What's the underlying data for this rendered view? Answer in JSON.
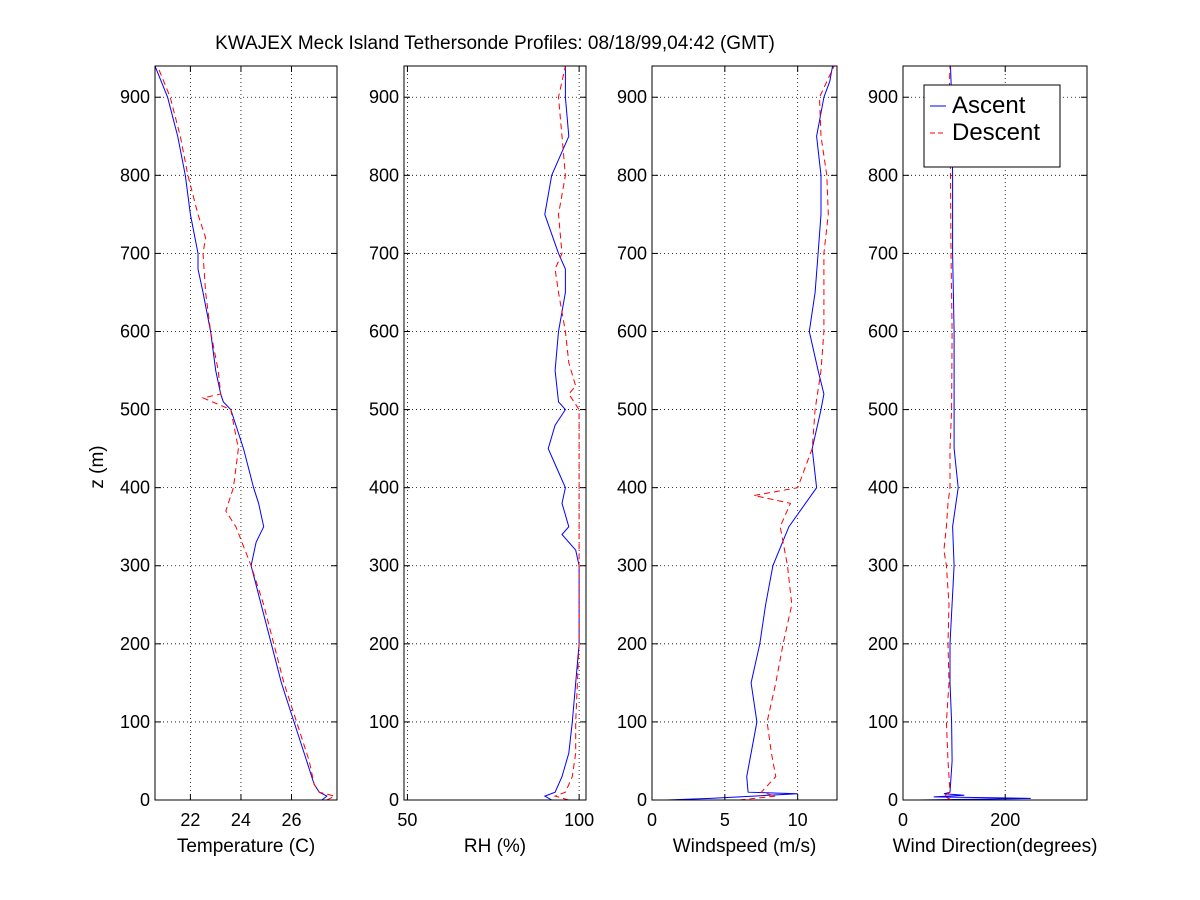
{
  "chart_data": {
    "type": "line",
    "title": "KWAJEX Meck Island Tethersonde Profiles: 08/18/99,04:42 (GMT)",
    "ylabel": "z (m)",
    "ylim": [
      0,
      940
    ],
    "yticks": [
      0,
      100,
      200,
      300,
      400,
      500,
      600,
      700,
      800,
      900
    ],
    "colors": {
      "ascent": "#0000ff",
      "descent": "#ff0000"
    },
    "legend": {
      "position": "top-right",
      "panel": 3,
      "entries": [
        "Ascent",
        "Descent"
      ]
    },
    "panels": [
      {
        "xlabel": "Temperature (C)",
        "xlim": [
          20.6,
          27.8
        ],
        "xticks": [
          22,
          24,
          26
        ],
        "series": [
          {
            "name": "Ascent",
            "z": [
              0,
              5,
              10,
              20,
              50,
              100,
              150,
              200,
              250,
              300,
              330,
              350,
              380,
              400,
              450,
              500,
              510,
              520,
              550,
              600,
              650,
              680,
              700,
              750,
              800,
              850,
              900,
              940
            ],
            "x": [
              27.2,
              27.4,
              27.1,
              26.9,
              26.6,
              26.1,
              25.6,
              25.2,
              24.8,
              24.4,
              24.6,
              24.9,
              24.7,
              24.5,
              24.1,
              23.6,
              23.3,
              23.2,
              23.0,
              22.8,
              22.5,
              22.3,
              22.3,
              22.0,
              21.8,
              21.5,
              21.1,
              20.6
            ]
          },
          {
            "name": "Descent",
            "z": [
              0,
              5,
              10,
              20,
              50,
              100,
              150,
              200,
              250,
              300,
              350,
              370,
              400,
              450,
              500,
              515,
              520,
              550,
              600,
              650,
              700,
              720,
              750,
              800,
              850,
              900,
              940
            ],
            "x": [
              27.4,
              27.7,
              27.1,
              26.9,
              26.7,
              26.2,
              25.7,
              25.3,
              24.9,
              24.4,
              23.8,
              23.4,
              23.7,
              23.9,
              23.6,
              22.5,
              23.2,
              23.1,
              22.8,
              22.6,
              22.5,
              22.6,
              22.3,
              21.9,
              21.6,
              21.2,
              20.7
            ]
          }
        ]
      },
      {
        "xlabel": "RH (%)",
        "xlim": [
          49,
          102
        ],
        "xticks": [
          50,
          100
        ],
        "series": [
          {
            "name": "Ascent",
            "z": [
              0,
              5,
              10,
              30,
              60,
              100,
              150,
              200,
              250,
              300,
              320,
              340,
              350,
              380,
              400,
              420,
              450,
              480,
              500,
              510,
              550,
              600,
              650,
              680,
              700,
              750,
              800,
              850,
              900,
              940
            ],
            "x": [
              92,
              90,
              93,
              95,
              97,
              98,
              99,
              100,
              100,
              100,
              99,
              95,
              97,
              95,
              96,
              94,
              91,
              93,
              96,
              94,
              93,
              94,
              96,
              96,
              94,
              90,
              92,
              97,
              96,
              96
            ]
          },
          {
            "name": "Descent",
            "z": [
              0,
              5,
              10,
              30,
              60,
              100,
              200,
              300,
              400,
              500,
              520,
              530,
              560,
              600,
              650,
              680,
              700,
              750,
              800,
              850,
              900,
              940
            ],
            "x": [
              97,
              93,
              96,
              98,
              99,
              99,
              100,
              100,
              100,
              100,
              97,
              99,
              97,
              96,
              94,
              93,
              95,
              94,
              96,
              95,
              94,
              96
            ]
          }
        ]
      },
      {
        "xlabel": "Windspeed (m/s)",
        "xlim": [
          0,
          12.7
        ],
        "xticks": [
          0,
          5,
          10
        ],
        "series": [
          {
            "name": "Ascent",
            "z": [
              0,
              2,
              4,
              6,
              8,
              10,
              30,
              60,
              100,
              150,
              200,
              250,
              300,
              350,
              400,
              450,
              500,
              520,
              550,
              600,
              650,
              700,
              750,
              800,
              850,
              900,
              920,
              940
            ],
            "x": [
              1,
              4,
              6,
              8,
              10,
              6.6,
              6.5,
              6.8,
              7.2,
              6.8,
              7.4,
              7.8,
              8.3,
              9.4,
              11.3,
              11.0,
              11.6,
              11.8,
              11.4,
              10.8,
              11.2,
              11.4,
              11.6,
              11.6,
              11.3,
              11.8,
              12.2,
              12.4
            ]
          },
          {
            "name": "Descent",
            "z": [
              0,
              5,
              10,
              30,
              60,
              100,
              150,
              200,
              250,
              300,
              350,
              380,
              390,
              400,
              450,
              500,
              550,
              600,
              650,
              700,
              750,
              800,
              850,
              900,
              940
            ],
            "x": [
              6.0,
              8.5,
              7.5,
              8.5,
              8.2,
              7.9,
              8.5,
              9.0,
              9.6,
              9.3,
              8.8,
              9.5,
              7.0,
              10.0,
              11.0,
              11.2,
              11.6,
              11.8,
              11.8,
              11.8,
              12.1,
              12.0,
              11.6,
              11.5,
              12.5
            ]
          }
        ]
      },
      {
        "xlabel": "Wind Direction(degrees)",
        "xlim": [
          0,
          360
        ],
        "xticks": [
          0,
          200
        ],
        "series": [
          {
            "name": "Ascent",
            "z": [
              0,
              2,
              4,
              6,
              8,
              10,
              50,
              100,
              150,
              200,
              300,
              350,
              400,
              450,
              500,
              600,
              700,
              800,
              900,
              940
            ],
            "x": [
              30,
              250,
              60,
              120,
              80,
              92,
              96,
              95,
              92,
              92,
              100,
              97,
              108,
              100,
              100,
              100,
              97,
              97,
              95,
              93
            ]
          },
          {
            "name": "Descent",
            "z": [
              0,
              5,
              10,
              50,
              100,
              150,
              200,
              250,
              300,
              320,
              350,
              380,
              400,
              450,
              500,
              600,
              700,
              800,
              900,
              940
            ],
            "x": [
              95,
              80,
              92,
              88,
              85,
              90,
              88,
              90,
              85,
              80,
              85,
              88,
              92,
              92,
              95,
              96,
              94,
              93,
              90,
              92
            ]
          }
        ]
      }
    ]
  }
}
